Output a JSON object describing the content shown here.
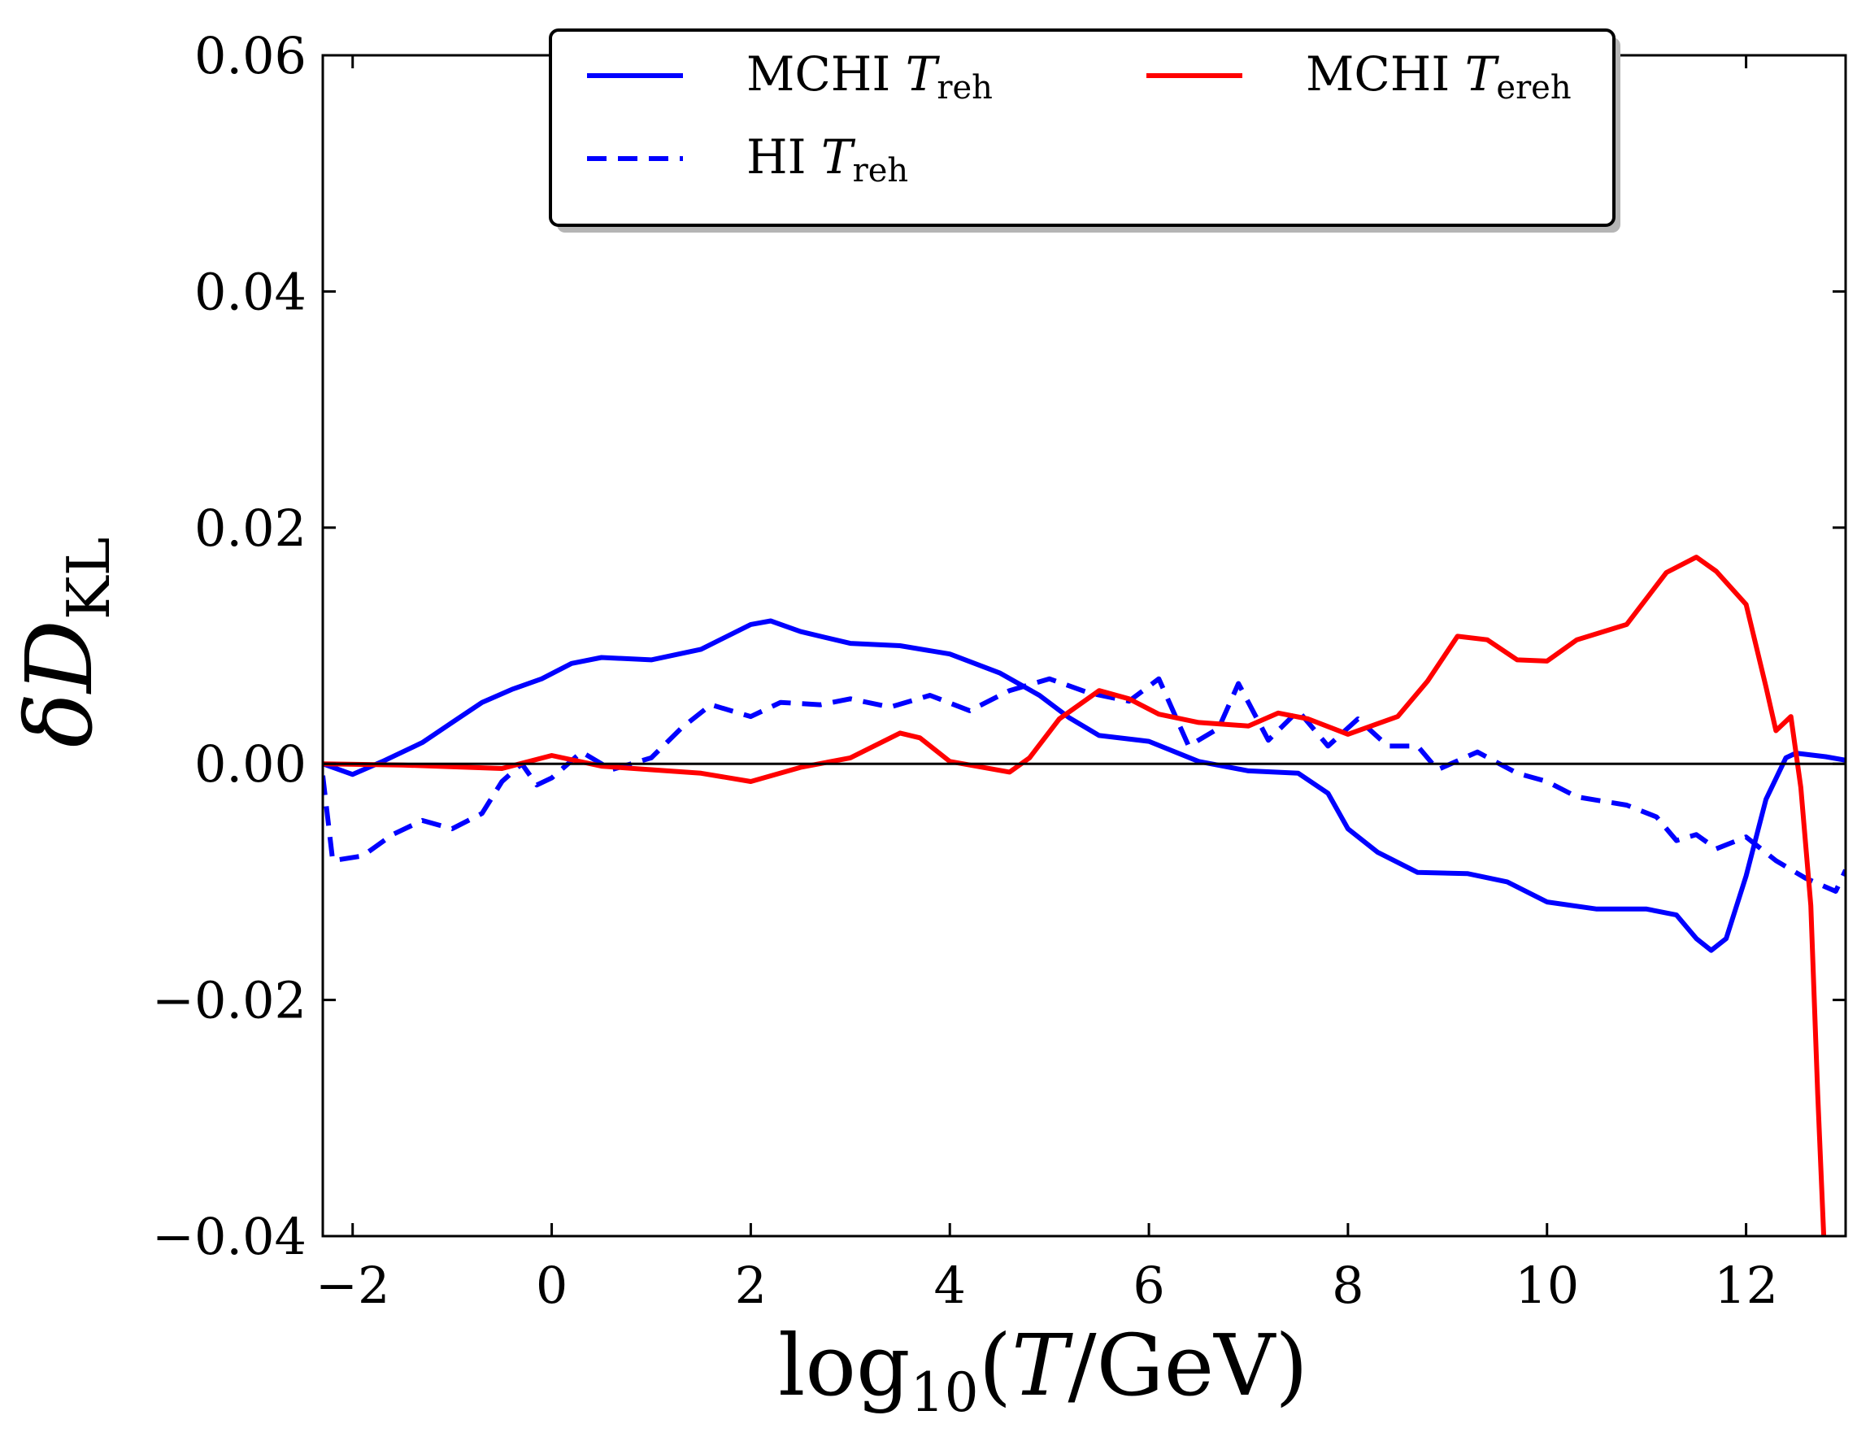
{
  "chart_data": {
    "type": "line",
    "xlabel": {
      "prefix": "log",
      "sub": "10",
      "open": "(",
      "var": "T",
      "rest": "/GeV)"
    },
    "ylabel": {
      "delta": "δ",
      "var": "D",
      "sub": "KL"
    },
    "xlim": [
      -2.3,
      13.0
    ],
    "ylim": [
      -0.04,
      0.06
    ],
    "xticks": [
      -2,
      0,
      2,
      4,
      6,
      8,
      10,
      12
    ],
    "xtick_labels": [
      "−2",
      "0",
      "2",
      "4",
      "6",
      "8",
      "10",
      "12"
    ],
    "yticks": [
      -0.04,
      -0.02,
      0.0,
      0.02,
      0.04,
      0.06
    ],
    "ytick_labels": [
      "−0.04",
      "−0.02",
      "0.00",
      "0.02",
      "0.04",
      "0.06"
    ],
    "zero_line": 0.0,
    "legend_position": "top-center",
    "series": [
      {
        "name": "mchi-treh",
        "label_main": "MCHI ",
        "label_var": "T",
        "label_sub": "reh",
        "color": "#0000ff",
        "style": "solid",
        "points": [
          [
            -2.3,
            0.0
          ],
          [
            -2.0,
            -0.0009
          ],
          [
            -1.7,
            0.0002
          ],
          [
            -1.3,
            0.0018
          ],
          [
            -1.0,
            0.0035
          ],
          [
            -0.7,
            0.0052
          ],
          [
            -0.4,
            0.0063
          ],
          [
            -0.1,
            0.0072
          ],
          [
            0.2,
            0.0085
          ],
          [
            0.5,
            0.009
          ],
          [
            1.0,
            0.0088
          ],
          [
            1.5,
            0.0097
          ],
          [
            2.0,
            0.0118
          ],
          [
            2.2,
            0.0121
          ],
          [
            2.5,
            0.0112
          ],
          [
            3.0,
            0.0102
          ],
          [
            3.5,
            0.01
          ],
          [
            4.0,
            0.0093
          ],
          [
            4.5,
            0.0077
          ],
          [
            4.9,
            0.0058
          ],
          [
            5.2,
            0.0039
          ],
          [
            5.5,
            0.0024
          ],
          [
            6.0,
            0.0019
          ],
          [
            6.5,
            0.0002
          ],
          [
            7.0,
            -0.0006
          ],
          [
            7.5,
            -0.0008
          ],
          [
            7.8,
            -0.0025
          ],
          [
            8.0,
            -0.0055
          ],
          [
            8.3,
            -0.0075
          ],
          [
            8.7,
            -0.0092
          ],
          [
            9.2,
            -0.0093
          ],
          [
            9.6,
            -0.01
          ],
          [
            10.0,
            -0.0117
          ],
          [
            10.5,
            -0.0123
          ],
          [
            11.0,
            -0.0123
          ],
          [
            11.3,
            -0.0128
          ],
          [
            11.5,
            -0.0148
          ],
          [
            11.65,
            -0.0158
          ],
          [
            11.8,
            -0.0148
          ],
          [
            12.0,
            -0.0095
          ],
          [
            12.2,
            -0.003
          ],
          [
            12.4,
            0.0005
          ],
          [
            12.5,
            0.0009
          ],
          [
            12.8,
            0.0006
          ],
          [
            13.0,
            0.0003
          ]
        ]
      },
      {
        "name": "hi-treh",
        "label_main": "HI ",
        "label_var": "T",
        "label_sub": "reh",
        "color": "#0000ff",
        "style": "dashed",
        "points": [
          [
            -2.3,
            -0.001
          ],
          [
            -2.2,
            -0.0082
          ],
          [
            -1.9,
            -0.0078
          ],
          [
            -1.6,
            -0.006
          ],
          [
            -1.3,
            -0.0048
          ],
          [
            -1.0,
            -0.0055
          ],
          [
            -0.7,
            -0.0042
          ],
          [
            -0.5,
            -0.0015
          ],
          [
            -0.3,
            0.0
          ],
          [
            -0.15,
            -0.0018
          ],
          [
            0.0,
            -0.0012
          ],
          [
            0.3,
            0.001
          ],
          [
            0.6,
            -0.0005
          ],
          [
            1.0,
            0.0005
          ],
          [
            1.3,
            0.003
          ],
          [
            1.6,
            0.005
          ],
          [
            2.0,
            0.004
          ],
          [
            2.3,
            0.0052
          ],
          [
            2.7,
            0.005
          ],
          [
            3.0,
            0.0055
          ],
          [
            3.4,
            0.0048
          ],
          [
            3.8,
            0.0058
          ],
          [
            4.2,
            0.0045
          ],
          [
            4.6,
            0.0062
          ],
          [
            5.0,
            0.0072
          ],
          [
            5.4,
            0.006
          ],
          [
            5.8,
            0.0053
          ],
          [
            6.1,
            0.0072
          ],
          [
            6.4,
            0.0015
          ],
          [
            6.7,
            0.003
          ],
          [
            6.9,
            0.0068
          ],
          [
            7.2,
            0.002
          ],
          [
            7.5,
            0.0045
          ],
          [
            7.8,
            0.0015
          ],
          [
            8.1,
            0.0038
          ],
          [
            8.4,
            0.0015
          ],
          [
            8.7,
            0.0015
          ],
          [
            8.9,
            -0.0005
          ],
          [
            9.3,
            0.001
          ],
          [
            9.7,
            -0.0008
          ],
          [
            10.0,
            -0.0015
          ],
          [
            10.3,
            -0.0028
          ],
          [
            10.8,
            -0.0035
          ],
          [
            11.1,
            -0.0045
          ],
          [
            11.3,
            -0.0065
          ],
          [
            11.5,
            -0.006
          ],
          [
            11.7,
            -0.0072
          ],
          [
            12.0,
            -0.0062
          ],
          [
            12.3,
            -0.0082
          ],
          [
            12.6,
            -0.0097
          ],
          [
            12.9,
            -0.0108
          ],
          [
            13.0,
            -0.009
          ]
        ]
      },
      {
        "name": "mchi-tereh",
        "label_main": "MCHI ",
        "label_var": "T",
        "label_sub": "ereh",
        "color": "#ff0000",
        "style": "solid",
        "points": [
          [
            -2.3,
            0.0
          ],
          [
            -1.5,
            -0.0001
          ],
          [
            -0.5,
            -0.0004
          ],
          [
            0.0,
            0.0007
          ],
          [
            0.5,
            -0.0002
          ],
          [
            1.0,
            -0.0005
          ],
          [
            1.5,
            -0.0008
          ],
          [
            2.0,
            -0.0015
          ],
          [
            2.5,
            -0.0003
          ],
          [
            3.0,
            0.0005
          ],
          [
            3.5,
            0.0026
          ],
          [
            3.7,
            0.0022
          ],
          [
            4.0,
            0.0002
          ],
          [
            4.6,
            -0.0007
          ],
          [
            4.8,
            0.0005
          ],
          [
            5.1,
            0.0038
          ],
          [
            5.5,
            0.0062
          ],
          [
            5.8,
            0.0055
          ],
          [
            6.1,
            0.0042
          ],
          [
            6.5,
            0.0035
          ],
          [
            7.0,
            0.0032
          ],
          [
            7.3,
            0.0043
          ],
          [
            7.6,
            0.0038
          ],
          [
            8.0,
            0.0025
          ],
          [
            8.5,
            0.004
          ],
          [
            8.8,
            0.007
          ],
          [
            9.1,
            0.0108
          ],
          [
            9.4,
            0.0105
          ],
          [
            9.7,
            0.0088
          ],
          [
            10.0,
            0.0087
          ],
          [
            10.3,
            0.0105
          ],
          [
            10.8,
            0.0118
          ],
          [
            11.2,
            0.0162
          ],
          [
            11.5,
            0.0175
          ],
          [
            11.7,
            0.0163
          ],
          [
            12.0,
            0.0135
          ],
          [
            12.2,
            0.0065
          ],
          [
            12.3,
            0.0028
          ],
          [
            12.45,
            0.004
          ],
          [
            12.55,
            -0.002
          ],
          [
            12.65,
            -0.012
          ],
          [
            12.72,
            -0.028
          ],
          [
            12.78,
            -0.04
          ]
        ]
      }
    ]
  }
}
